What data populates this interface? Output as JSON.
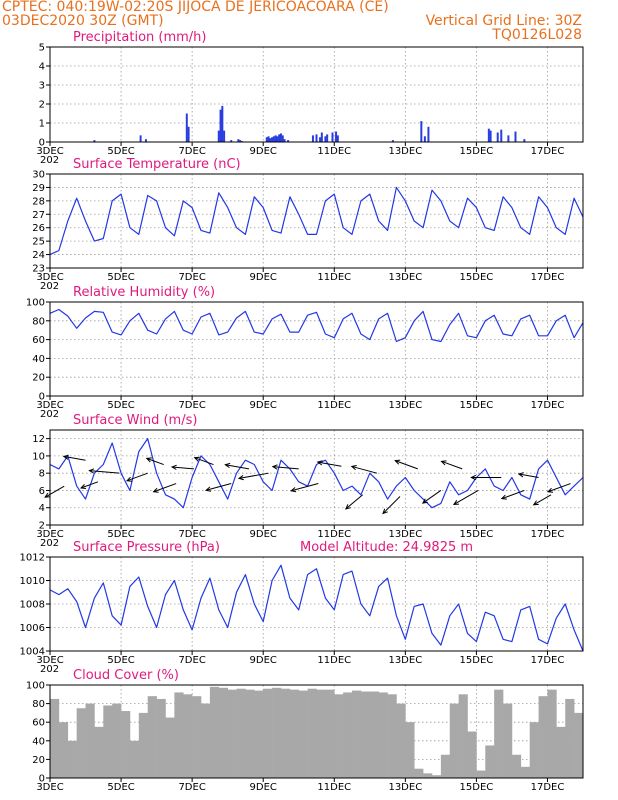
{
  "header": {
    "line1_left": "CPTEC:   040:19W-02:20S   JIJOCA DE JERICOACOARA (CE)",
    "line2_left": "03DEC2020 30Z (GMT)",
    "line2_right": "Vertical Grid Line: 30Z",
    "line3_right": "TQ0126L028"
  },
  "colors": {
    "header": "#e8701e",
    "title": "#e0197d",
    "line": "#2238e6",
    "bar": "#2a3ee0",
    "cloud": "#a8a8a8",
    "arrow": "#000000"
  },
  "x_axis": {
    "day_labels": [
      "3DEC",
      "5DEC",
      "7DEC",
      "9DEC",
      "11DEC",
      "13DEC",
      "15DEC",
      "17DEC"
    ],
    "day_label_values": [
      0,
      2,
      4,
      6,
      8,
      10,
      12,
      14
    ],
    "range_days": [
      0,
      15
    ],
    "year_fragment": "202"
  },
  "chart_data": [
    {
      "type": "bar",
      "key": "precip",
      "title": "Precipitation (mm/h)",
      "ylim": [
        0,
        5
      ],
      "yticks": [
        0,
        1,
        2,
        3,
        4,
        5
      ],
      "x": [
        1.25,
        2.55,
        2.7,
        3.85,
        3.9,
        4.75,
        4.8,
        4.85,
        4.9,
        5.1,
        5.3,
        5.35,
        5.4,
        6.1,
        6.15,
        6.2,
        6.25,
        6.3,
        6.35,
        6.4,
        6.45,
        6.5,
        6.55,
        6.6,
        6.7,
        7.4,
        7.5,
        7.6,
        7.65,
        7.75,
        7.8,
        7.95,
        8.05,
        8.1,
        9.65,
        10.45,
        10.55,
        10.65,
        12.35,
        12.4,
        12.6,
        12.7,
        12.9,
        13.1,
        13.35
      ],
      "values": [
        0.1,
        0.35,
        0.15,
        1.5,
        0.8,
        0.6,
        1.7,
        1.9,
        0.6,
        0.1,
        0.15,
        0.1,
        0.05,
        0.25,
        0.3,
        0.2,
        0.25,
        0.3,
        0.35,
        0.3,
        0.4,
        0.45,
        0.35,
        0.15,
        0.1,
        0.35,
        0.4,
        0.25,
        0.5,
        0.3,
        0.4,
        0.5,
        0.55,
        0.35,
        0.1,
        1.1,
        0.3,
        0.8,
        0.7,
        0.6,
        0.5,
        0.65,
        0.35,
        0.55,
        0.15
      ]
    },
    {
      "type": "line",
      "key": "temp",
      "title": "Surface Temperature (nC)",
      "ylim": [
        23,
        30
      ],
      "yticks": [
        23,
        24,
        25,
        26,
        27,
        28,
        29,
        30
      ],
      "x": [
        0,
        0.25,
        0.5,
        0.75,
        1.0,
        1.25,
        1.5,
        1.75,
        2.0,
        2.25,
        2.5,
        2.75,
        3.0,
        3.25,
        3.5,
        3.75,
        4.0,
        4.25,
        4.5,
        4.75,
        5.0,
        5.25,
        5.5,
        5.75,
        6.0,
        6.25,
        6.5,
        6.75,
        7.0,
        7.25,
        7.5,
        7.75,
        8.0,
        8.25,
        8.5,
        8.75,
        9.0,
        9.25,
        9.5,
        9.75,
        10.0,
        10.25,
        10.5,
        10.75,
        11.0,
        11.25,
        11.5,
        11.75,
        12.0,
        12.25,
        12.5,
        12.75,
        13.0,
        13.25,
        13.5,
        13.75,
        14.0,
        14.25,
        14.5,
        14.75,
        15.0
      ],
      "values": [
        24.0,
        24.3,
        26.5,
        28.2,
        26.5,
        25.0,
        25.2,
        28.0,
        28.5,
        26.0,
        25.5,
        28.4,
        28.0,
        26.0,
        25.4,
        28.0,
        27.5,
        25.8,
        25.6,
        28.6,
        27.5,
        26.0,
        25.5,
        28.3,
        27.5,
        25.8,
        25.6,
        28.3,
        27.0,
        25.5,
        25.5,
        28.0,
        28.5,
        26.0,
        25.5,
        28.0,
        28.5,
        26.5,
        25.8,
        29.0,
        28.0,
        26.5,
        26.0,
        28.8,
        28.0,
        26.5,
        26.0,
        28.2,
        27.5,
        26.0,
        25.8,
        28.3,
        27.5,
        26.0,
        25.5,
        28.3,
        27.5,
        26.0,
        25.5,
        28.2,
        26.8
      ]
    },
    {
      "type": "line",
      "key": "rh",
      "title": "Relative Humidity (%)",
      "ylim": [
        0,
        100
      ],
      "yticks": [
        0,
        20,
        40,
        60,
        80,
        100
      ],
      "x": [
        0,
        0.25,
        0.5,
        0.75,
        1.0,
        1.25,
        1.5,
        1.75,
        2.0,
        2.25,
        2.5,
        2.75,
        3.0,
        3.25,
        3.5,
        3.75,
        4.0,
        4.25,
        4.5,
        4.75,
        5.0,
        5.25,
        5.5,
        5.75,
        6.0,
        6.25,
        6.5,
        6.75,
        7.0,
        7.25,
        7.5,
        7.75,
        8.0,
        8.25,
        8.5,
        8.75,
        9.0,
        9.25,
        9.5,
        9.75,
        10.0,
        10.25,
        10.5,
        10.75,
        11.0,
        11.25,
        11.5,
        11.75,
        12.0,
        12.25,
        12.5,
        12.75,
        13.0,
        13.25,
        13.5,
        13.75,
        14.0,
        14.25,
        14.5,
        14.75,
        15.0
      ],
      "values": [
        88,
        92,
        85,
        72,
        83,
        90,
        89,
        68,
        65,
        80,
        88,
        70,
        66,
        82,
        90,
        70,
        66,
        84,
        88,
        65,
        68,
        83,
        90,
        68,
        66,
        82,
        87,
        68,
        68,
        86,
        89,
        66,
        62,
        82,
        88,
        66,
        60,
        82,
        88,
        58,
        62,
        80,
        90,
        60,
        58,
        76,
        88,
        64,
        62,
        80,
        86,
        66,
        64,
        82,
        86,
        64,
        64,
        80,
        86,
        62,
        78
      ]
    },
    {
      "type": "line",
      "key": "wind",
      "title": "Surface Wind (m/s)",
      "ylim": [
        2,
        13
      ],
      "yticks": [
        2,
        4,
        6,
        8,
        10,
        12
      ],
      "x": [
        0,
        0.25,
        0.5,
        0.75,
        1.0,
        1.25,
        1.5,
        1.75,
        2.0,
        2.25,
        2.5,
        2.75,
        3.0,
        3.25,
        3.5,
        3.75,
        4.0,
        4.25,
        4.5,
        4.75,
        5.0,
        5.25,
        5.5,
        5.75,
        6.0,
        6.25,
        6.5,
        6.75,
        7.0,
        7.25,
        7.5,
        7.75,
        8.0,
        8.25,
        8.5,
        8.75,
        9.0,
        9.25,
        9.5,
        9.75,
        10.0,
        10.25,
        10.5,
        10.75,
        11.0,
        11.25,
        11.5,
        11.75,
        12.0,
        12.25,
        12.5,
        12.75,
        13.0,
        13.25,
        13.5,
        13.75,
        14.0,
        14.25,
        14.5,
        14.75,
        15.0
      ],
      "values": [
        9.0,
        8.5,
        10.0,
        6.5,
        5.0,
        8.0,
        9.0,
        11.5,
        8.0,
        6.0,
        10.5,
        12.0,
        8.0,
        5.5,
        5.0,
        4.0,
        7.5,
        10.0,
        9.0,
        7.0,
        5.0,
        8.0,
        9.5,
        9.0,
        7.0,
        6.0,
        9.5,
        8.5,
        7.0,
        6.5,
        9.0,
        9.5,
        8.0,
        6.0,
        6.5,
        5.5,
        8.0,
        7.0,
        5.0,
        6.5,
        7.5,
        6.0,
        5.0,
        4.0,
        4.5,
        7.0,
        5.5,
        6.0,
        7.5,
        8.5,
        6.5,
        6.0,
        7.5,
        5.5,
        5.0,
        8.5,
        9.5,
        7.5,
        5.5,
        6.5,
        7.5
      ],
      "arrows": [
        {
          "x": 0.4,
          "y": 6.5,
          "dir_deg": 210,
          "len": 22
        },
        {
          "x": 1.0,
          "y": 9.5,
          "dir_deg": 170,
          "len": 22
        },
        {
          "x": 1.35,
          "y": 7.0,
          "dir_deg": 200,
          "len": 18
        },
        {
          "x": 1.95,
          "y": 8.0,
          "dir_deg": 175,
          "len": 30
        },
        {
          "x": 2.75,
          "y": 8.0,
          "dir_deg": 200,
          "len": 22
        },
        {
          "x": 3.2,
          "y": 9.0,
          "dir_deg": 160,
          "len": 18
        },
        {
          "x": 3.55,
          "y": 6.8,
          "dir_deg": 200,
          "len": 24
        },
        {
          "x": 4.05,
          "y": 8.5,
          "dir_deg": 175,
          "len": 22
        },
        {
          "x": 4.6,
          "y": 9.0,
          "dir_deg": 160,
          "len": 20
        },
        {
          "x": 5.1,
          "y": 6.8,
          "dir_deg": 195,
          "len": 26
        },
        {
          "x": 5.6,
          "y": 8.5,
          "dir_deg": 170,
          "len": 24
        },
        {
          "x": 6.15,
          "y": 8.0,
          "dir_deg": 190,
          "len": 30
        },
        {
          "x": 7.0,
          "y": 8.5,
          "dir_deg": 175,
          "len": 26
        },
        {
          "x": 7.55,
          "y": 6.8,
          "dir_deg": 195,
          "len": 28
        },
        {
          "x": 8.2,
          "y": 8.8,
          "dir_deg": 170,
          "len": 24
        },
        {
          "x": 8.8,
          "y": 5.5,
          "dir_deg": 220,
          "len": 22
        },
        {
          "x": 9.2,
          "y": 8.0,
          "dir_deg": 165,
          "len": 26
        },
        {
          "x": 9.85,
          "y": 5.3,
          "dir_deg": 225,
          "len": 24
        },
        {
          "x": 10.35,
          "y": 8.5,
          "dir_deg": 160,
          "len": 24
        },
        {
          "x": 11.0,
          "y": 6.0,
          "dir_deg": 215,
          "len": 22
        },
        {
          "x": 11.6,
          "y": 8.5,
          "dir_deg": 160,
          "len": 22
        },
        {
          "x": 12.05,
          "y": 6.0,
          "dir_deg": 210,
          "len": 28
        },
        {
          "x": 12.7,
          "y": 7.5,
          "dir_deg": 180,
          "len": 30
        },
        {
          "x": 13.35,
          "y": 6.0,
          "dir_deg": 200,
          "len": 24
        },
        {
          "x": 13.75,
          "y": 7.5,
          "dir_deg": 170,
          "len": 20
        },
        {
          "x": 14.1,
          "y": 5.5,
          "dir_deg": 210,
          "len": 20
        },
        {
          "x": 14.65,
          "y": 6.8,
          "dir_deg": 200,
          "len": 24
        }
      ]
    },
    {
      "type": "line",
      "key": "pres",
      "title": "Surface Pressure (hPa)",
      "subtitle": "Model Altitude: 24.9825  m",
      "ylim": [
        1004,
        1012
      ],
      "yticks": [
        1004,
        1006,
        1008,
        1010,
        1012
      ],
      "x": [
        0,
        0.25,
        0.5,
        0.75,
        1.0,
        1.25,
        1.5,
        1.75,
        2.0,
        2.25,
        2.5,
        2.75,
        3.0,
        3.25,
        3.5,
        3.75,
        4.0,
        4.25,
        4.5,
        4.75,
        5.0,
        5.25,
        5.5,
        5.75,
        6.0,
        6.25,
        6.5,
        6.75,
        7.0,
        7.25,
        7.5,
        7.75,
        8.0,
        8.25,
        8.5,
        8.75,
        9.0,
        9.25,
        9.5,
        9.75,
        10.0,
        10.25,
        10.5,
        10.75,
        11.0,
        11.25,
        11.5,
        11.75,
        12.0,
        12.25,
        12.5,
        12.75,
        13.0,
        13.25,
        13.5,
        13.75,
        14.0,
        14.25,
        14.5,
        14.75,
        15.0
      ],
      "values": [
        1009.2,
        1008.8,
        1009.3,
        1008.2,
        1006.0,
        1008.5,
        1009.8,
        1007.0,
        1006.2,
        1009.5,
        1010.3,
        1007.8,
        1006.0,
        1008.8,
        1010.0,
        1007.5,
        1005.8,
        1008.5,
        1010.2,
        1007.5,
        1006.0,
        1009.0,
        1010.5,
        1008.0,
        1006.5,
        1010.0,
        1011.3,
        1008.5,
        1007.5,
        1010.5,
        1011.0,
        1008.5,
        1007.5,
        1010.5,
        1010.8,
        1008.0,
        1007.0,
        1009.5,
        1010.2,
        1007.0,
        1005.0,
        1007.8,
        1008.0,
        1005.5,
        1004.5,
        1007.0,
        1008.0,
        1005.5,
        1004.8,
        1007.3,
        1007.0,
        1005.0,
        1004.8,
        1007.5,
        1007.8,
        1005.0,
        1004.6,
        1006.8,
        1008.0,
        1005.8,
        1004.0
      ]
    },
    {
      "type": "bar",
      "key": "cloud",
      "title": "Cloud Cover (%)",
      "ylim": [
        0,
        100
      ],
      "yticks": [
        0,
        20,
        40,
        60,
        80,
        100
      ],
      "x": [
        0.0,
        0.25,
        0.5,
        0.75,
        1.0,
        1.25,
        1.5,
        1.75,
        2.0,
        2.25,
        2.5,
        2.75,
        3.0,
        3.25,
        3.5,
        3.75,
        4.0,
        4.25,
        4.5,
        4.75,
        5.0,
        5.25,
        5.5,
        5.75,
        6.0,
        6.25,
        6.5,
        6.75,
        7.0,
        7.25,
        7.5,
        7.75,
        8.0,
        8.25,
        8.5,
        8.75,
        9.0,
        9.25,
        9.5,
        9.75,
        10.0,
        10.25,
        10.5,
        10.75,
        11.0,
        11.25,
        11.5,
        11.75,
        12.0,
        12.25,
        12.5,
        12.75,
        13.0,
        13.25,
        13.5,
        13.75,
        14.0,
        14.25,
        14.5,
        14.75
      ],
      "values": [
        85,
        60,
        40,
        75,
        80,
        55,
        78,
        80,
        72,
        40,
        70,
        88,
        85,
        65,
        92,
        90,
        88,
        80,
        98,
        97,
        95,
        96,
        95,
        94,
        96,
        97,
        96,
        95,
        94,
        96,
        95,
        95,
        90,
        92,
        94,
        93,
        93,
        92,
        90,
        80,
        60,
        10,
        5,
        3,
        25,
        80,
        90,
        50,
        8,
        35,
        95,
        80,
        25,
        12,
        60,
        88,
        95,
        55,
        85,
        70
      ]
    }
  ]
}
